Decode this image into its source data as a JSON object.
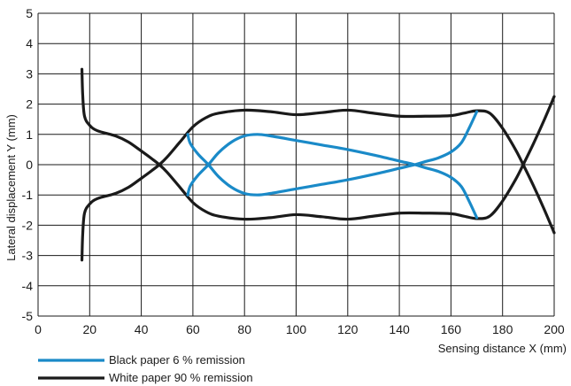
{
  "chart_data": {
    "type": "line",
    "xlabel": "Sensing distance X (mm)",
    "ylabel": "Lateral displacement Y (mm)",
    "xlim": [
      0,
      200
    ],
    "ylim": [
      -5,
      5
    ],
    "x_ticks": [
      "0",
      "20",
      "40",
      "60",
      "80",
      "100",
      "120",
      "140",
      "160",
      "180",
      "200"
    ],
    "y_ticks": [
      "5",
      "4",
      "3",
      "2",
      "1",
      "0",
      "-1",
      "-2",
      "-3",
      "-4",
      "-5"
    ],
    "grid": true,
    "legend_position": "bottom-left",
    "series": [
      {
        "name": "Black paper 6 % remission",
        "color": "#1a8ac8",
        "segments": [
          [
            [
              58,
              1.0
            ],
            [
              59,
              0.7
            ],
            [
              62,
              0.35
            ],
            [
              66,
              0.0
            ],
            [
              70,
              -0.4
            ],
            [
              75,
              -0.75
            ],
            [
              80,
              -0.95
            ],
            [
              85,
              -1.0
            ],
            [
              90,
              -0.95
            ],
            [
              100,
              -0.8
            ],
            [
              110,
              -0.65
            ],
            [
              120,
              -0.5
            ],
            [
              130,
              -0.32
            ],
            [
              140,
              -0.12
            ],
            [
              146,
              0.0
            ],
            [
              150,
              0.1
            ],
            [
              155,
              0.22
            ],
            [
              160,
              0.42
            ],
            [
              164,
              0.72
            ],
            [
              167,
              1.2
            ],
            [
              170,
              1.75
            ]
          ],
          [
            [
              58,
              -1.0
            ],
            [
              59,
              -0.7
            ],
            [
              62,
              -0.35
            ],
            [
              66,
              0.0
            ],
            [
              70,
              0.4
            ],
            [
              75,
              0.75
            ],
            [
              80,
              0.95
            ],
            [
              85,
              1.0
            ],
            [
              90,
              0.95
            ],
            [
              100,
              0.8
            ],
            [
              110,
              0.65
            ],
            [
              120,
              0.5
            ],
            [
              130,
              0.32
            ],
            [
              140,
              0.12
            ],
            [
              146,
              0.0
            ],
            [
              150,
              -0.1
            ],
            [
              155,
              -0.22
            ],
            [
              160,
              -0.42
            ],
            [
              164,
              -0.72
            ],
            [
              167,
              -1.2
            ],
            [
              170,
              -1.75
            ]
          ]
        ]
      },
      {
        "name": "White paper 90 % remission",
        "color": "#1a1a1a",
        "segments": [
          [
            [
              17,
              3.15
            ],
            [
              17.3,
              2.3
            ],
            [
              18,
              1.6
            ],
            [
              20,
              1.3
            ],
            [
              23,
              1.12
            ],
            [
              30,
              0.95
            ],
            [
              35,
              0.75
            ],
            [
              40,
              0.45
            ],
            [
              44,
              0.2
            ],
            [
              47,
              0.0
            ],
            [
              50,
              -0.25
            ],
            [
              55,
              -0.75
            ],
            [
              60,
              -1.25
            ],
            [
              65,
              -1.55
            ],
            [
              70,
              -1.7
            ],
            [
              80,
              -1.8
            ],
            [
              90,
              -1.75
            ],
            [
              100,
              -1.65
            ],
            [
              110,
              -1.72
            ],
            [
              120,
              -1.8
            ],
            [
              130,
              -1.7
            ],
            [
              140,
              -1.6
            ],
            [
              150,
              -1.6
            ],
            [
              160,
              -1.62
            ],
            [
              165,
              -1.7
            ],
            [
              170,
              -1.78
            ],
            [
              175,
              -1.7
            ],
            [
              180,
              -1.2
            ],
            [
              185,
              -0.5
            ],
            [
              188,
              0.0
            ],
            [
              192,
              0.7
            ],
            [
              196,
              1.45
            ],
            [
              200,
              2.25
            ]
          ],
          [
            [
              17,
              -3.15
            ],
            [
              17.3,
              -2.3
            ],
            [
              18,
              -1.6
            ],
            [
              20,
              -1.3
            ],
            [
              23,
              -1.12
            ],
            [
              30,
              -0.95
            ],
            [
              35,
              -0.75
            ],
            [
              40,
              -0.45
            ],
            [
              44,
              -0.2
            ],
            [
              47,
              0.0
            ],
            [
              50,
              0.25
            ],
            [
              55,
              0.75
            ],
            [
              60,
              1.25
            ],
            [
              65,
              1.55
            ],
            [
              70,
              1.7
            ],
            [
              80,
              1.8
            ],
            [
              90,
              1.75
            ],
            [
              100,
              1.65
            ],
            [
              110,
              1.72
            ],
            [
              120,
              1.8
            ],
            [
              130,
              1.7
            ],
            [
              140,
              1.6
            ],
            [
              150,
              1.6
            ],
            [
              160,
              1.62
            ],
            [
              165,
              1.7
            ],
            [
              170,
              1.78
            ],
            [
              175,
              1.7
            ],
            [
              180,
              1.2
            ],
            [
              185,
              0.5
            ],
            [
              188,
              0.0
            ],
            [
              192,
              -0.7
            ],
            [
              196,
              -1.45
            ],
            [
              200,
              -2.25
            ]
          ]
        ]
      }
    ]
  }
}
